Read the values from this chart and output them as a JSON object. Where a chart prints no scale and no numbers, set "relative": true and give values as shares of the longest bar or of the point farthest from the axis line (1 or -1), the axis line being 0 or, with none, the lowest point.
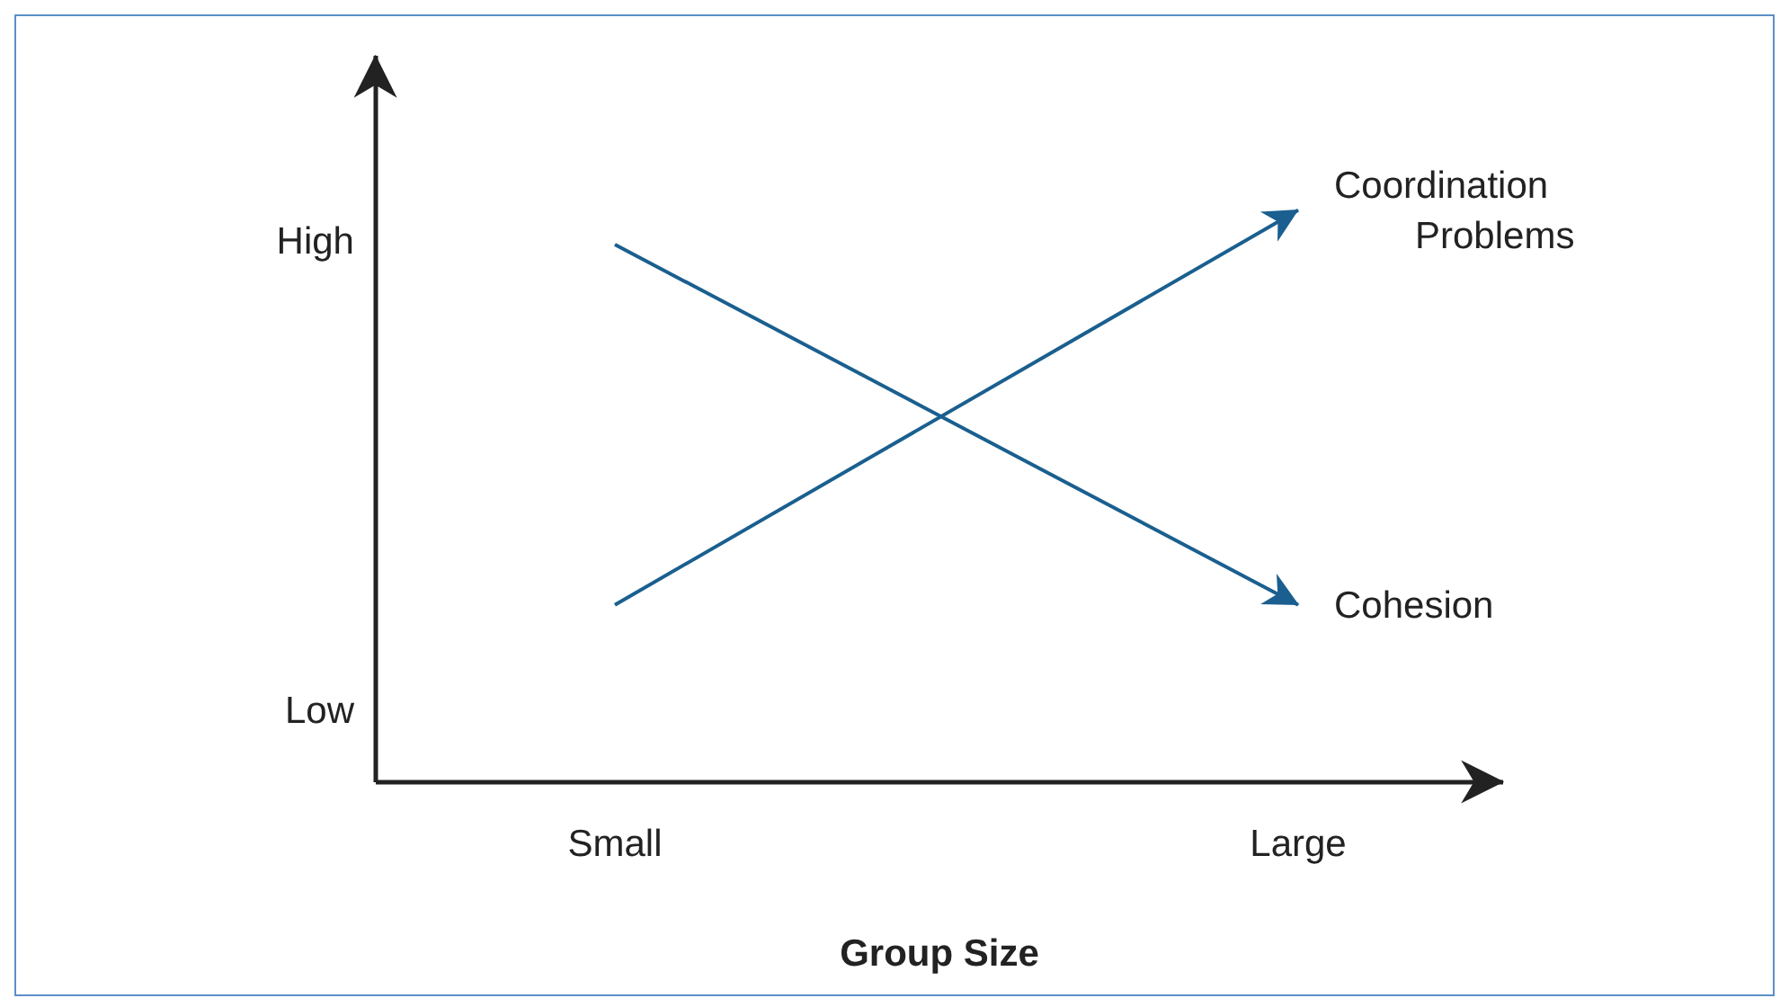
{
  "chart_data": {
    "type": "line",
    "xlabel": "Group Size",
    "relative": true,
    "categories": [
      "Small",
      "Large"
    ],
    "annotations": [
      "High",
      "Low"
    ],
    "grid": false,
    "legend": false,
    "series": [
      {
        "name": "Coordination Problems",
        "color": "#1a5f8f",
        "values": [
          0.31,
          1
        ]
      },
      {
        "name": "Cohesion",
        "color": "#1a5f8f",
        "values": [
          0.94,
          0.31
        ]
      }
    ]
  }
}
